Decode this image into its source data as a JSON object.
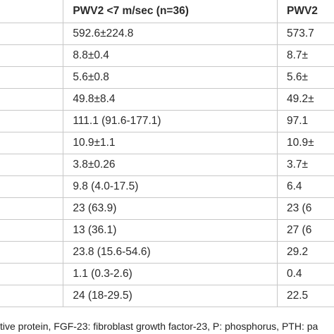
{
  "table": {
    "headers": [
      "",
      "PWV2 <7 m/sec (n=36)",
      "PWV2"
    ],
    "rows": [
      [
        "",
        "592.6±224.8",
        "573.7"
      ],
      [
        "",
        "8.8±0.4",
        "8.7±"
      ],
      [
        "",
        "5.6±0.8",
        "5.6±"
      ],
      [
        "",
        "49.8±8.4",
        "49.2±"
      ],
      [
        "",
        "111.1 (91.6-177.1)",
        "97.1"
      ],
      [
        "",
        "10.9±1.1",
        "10.9±"
      ],
      [
        "",
        "3.8±0.26",
        "3.7±"
      ],
      [
        "",
        "9.8 (4.0-17.5)",
        "6.4"
      ],
      [
        "",
        "23 (63.9)",
        "23 (6"
      ],
      [
        "",
        "13 (36.1)",
        "27 (6"
      ],
      [
        "",
        "23.8 (15.6-54.6)",
        "29.2"
      ],
      [
        "",
        "1.1 (0.3-2.6)",
        "0.4"
      ],
      [
        "",
        "24 (18-29.5)",
        "22.5"
      ]
    ]
  },
  "footnote": "tive protein, FGF-23: fibroblast growth factor-23, P: phosphorus, PTH: pa"
}
